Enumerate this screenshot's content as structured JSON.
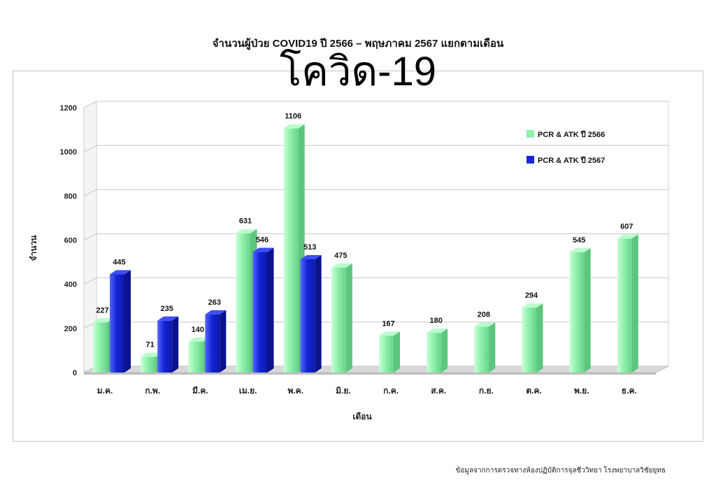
{
  "header": {
    "title": "จำนวนผู้ป่วย COVID19 ปี 2566 – พฤษภาคม 2567 แยกตามเดือน",
    "overlay_title": "โควิด-19"
  },
  "footnote": "ข้อมูลจากการตรวจทางห้องปฏิบัติการจุลชีววิทยา โรงพยาบาลวิชัยยุทธ",
  "colors": {
    "series_2566": "#8ef0ab",
    "series_2566_side": "#5cc57e",
    "series_2567": "#1526d8",
    "series_2567_side": "#0a128c"
  },
  "chart_data": {
    "type": "bar",
    "title": "จำนวนผู้ป่วย COVID19 ปี 2566 – พฤษภาคม 2567 แยกตามเดือน",
    "xlabel": "เดือน",
    "ylabel": "จำนวน",
    "ylim": [
      0,
      1200
    ],
    "yticks": [
      0,
      200,
      400,
      600,
      800,
      1000,
      1200
    ],
    "grid": true,
    "legend_position": "top-right",
    "categories": [
      "ม.ค.",
      "ก.พ.",
      "มี.ค.",
      "เม.ย.",
      "พ.ค.",
      "มิ.ย.",
      "ก.ค.",
      "ส.ค.",
      "ก.ย.",
      "ต.ค.",
      "พ.ย.",
      "ธ.ค."
    ],
    "series": [
      {
        "name": "PCR & ATK ปี 2566",
        "values": [
          227,
          71,
          140,
          631,
          1106,
          475,
          167,
          180,
          208,
          294,
          545,
          607
        ]
      },
      {
        "name": "PCR & ATK ปี 2567",
        "values": [
          445,
          235,
          263,
          546,
          513,
          null,
          null,
          null,
          null,
          null,
          null,
          null
        ]
      }
    ]
  }
}
